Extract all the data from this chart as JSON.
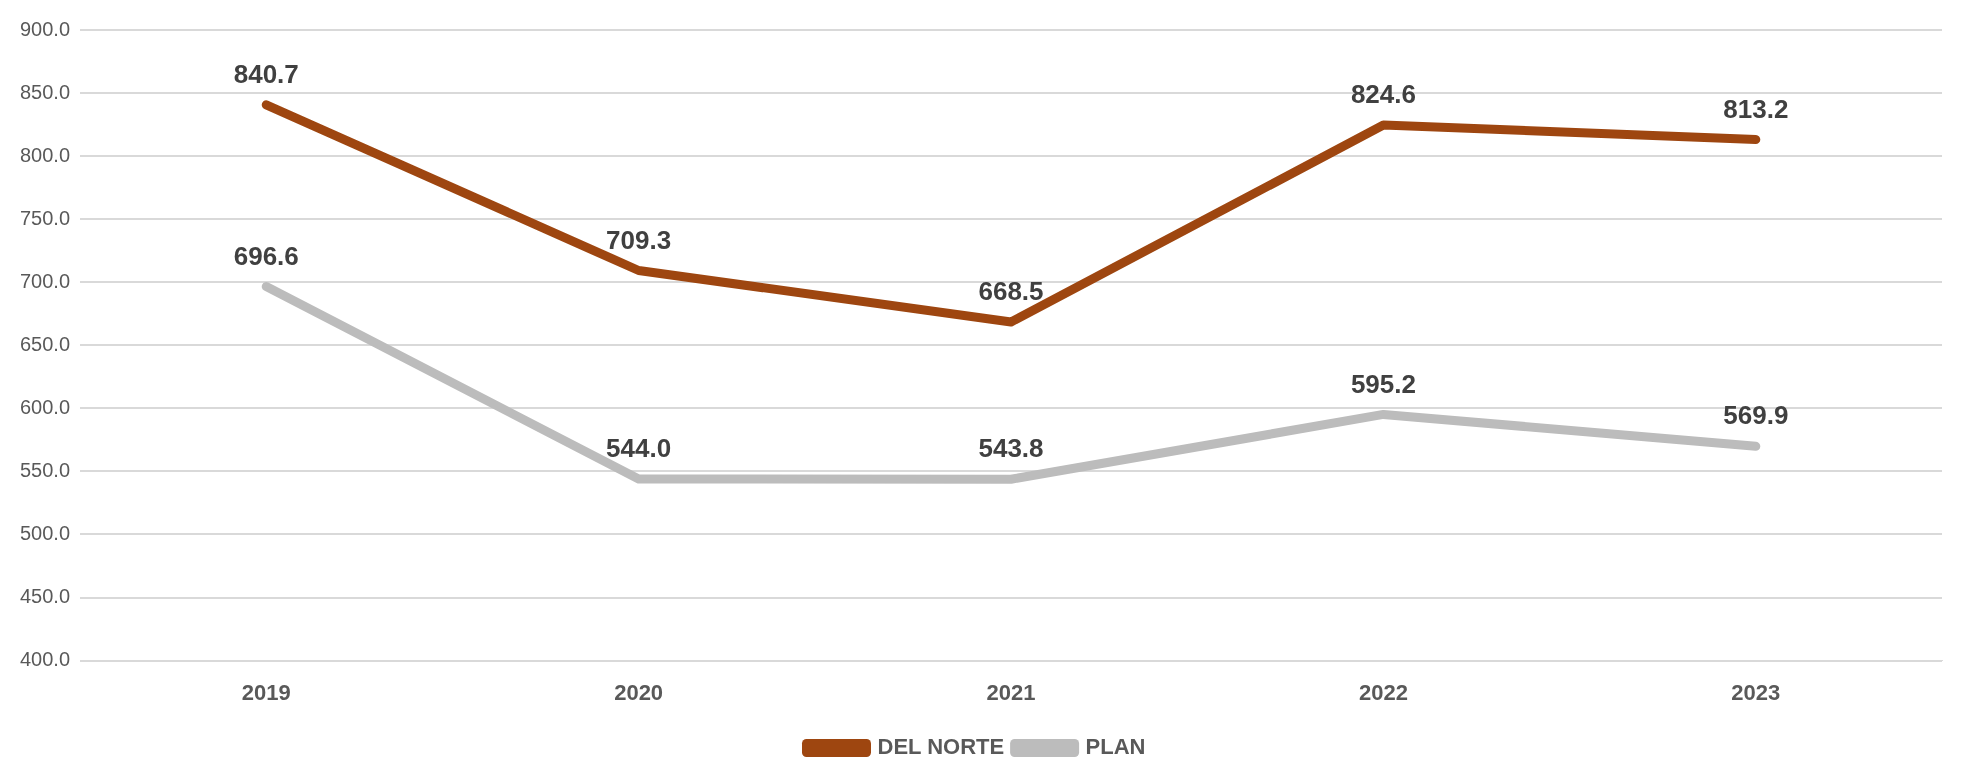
{
  "chart_data": {
    "type": "line",
    "categories": [
      "2019",
      "2020",
      "2021",
      "2022",
      "2023"
    ],
    "series": [
      {
        "name": "DEL NORTE",
        "color": "#9e4610",
        "values": [
          840.7,
          709.3,
          668.5,
          824.6,
          813.2
        ]
      },
      {
        "name": "PLAN",
        "color": "#bcbcbc",
        "values": [
          696.6,
          544.0,
          543.8,
          595.2,
          569.9
        ]
      }
    ],
    "ylim": [
      400,
      900
    ],
    "yticks": [
      {
        "value": 400,
        "label": "400.0"
      },
      {
        "value": 450,
        "label": "450.0"
      },
      {
        "value": 500,
        "label": "500.0"
      },
      {
        "value": 550,
        "label": "550.0"
      },
      {
        "value": 600,
        "label": "600.0"
      },
      {
        "value": 650,
        "label": "650.0"
      },
      {
        "value": 700,
        "label": "700.0"
      },
      {
        "value": 750,
        "label": "750.0"
      },
      {
        "value": 800,
        "label": "800.0"
      },
      {
        "value": 850,
        "label": "850.0"
      },
      {
        "value": 900,
        "label": "900.0"
      }
    ],
    "value_labels": [
      [
        "840.7",
        "709.3",
        "668.5",
        "824.6",
        "813.2"
      ],
      [
        "696.6",
        "544.0",
        "543.8",
        "595.2",
        "569.9"
      ]
    ],
    "grid": "y",
    "legend": "bottom",
    "marker": "none",
    "line_style": "solid"
  }
}
